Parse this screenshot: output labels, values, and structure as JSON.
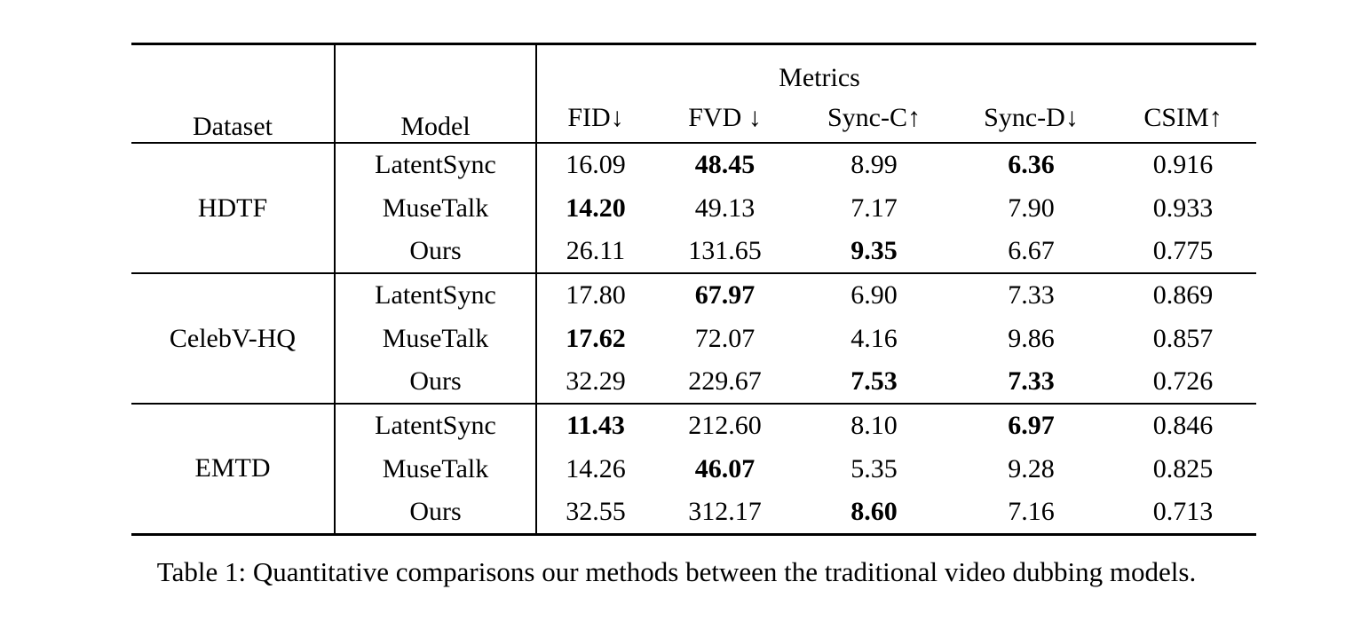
{
  "page": {
    "background_color": "#ffffff",
    "text_color": "#000000"
  },
  "caption": "Table 1: Quantitative comparisons our methods between the traditional video dubbing models.",
  "table": {
    "header": {
      "dataset": "Dataset",
      "model": "Model",
      "metrics_group": "Metrics",
      "metrics": [
        "FID↓",
        "FVD ↓",
        "Sync-C↑",
        "Sync-D↓",
        "CSIM↑"
      ]
    },
    "groups": [
      {
        "dataset": "HDTF",
        "rows": [
          {
            "model": "LatentSync",
            "values": [
              "16.09",
              "48.45",
              "8.99",
              "6.36",
              "0.916"
            ],
            "bold": [
              false,
              true,
              false,
              true,
              false
            ]
          },
          {
            "model": "MuseTalk",
            "values": [
              "14.20",
              "49.13",
              "7.17",
              "7.90",
              "0.933"
            ],
            "bold": [
              true,
              false,
              false,
              false,
              false
            ]
          },
          {
            "model": "Ours",
            "values": [
              "26.11",
              "131.65",
              "9.35",
              "6.67",
              "0.775"
            ],
            "bold": [
              false,
              false,
              true,
              false,
              false
            ]
          }
        ]
      },
      {
        "dataset": "CelebV-HQ",
        "rows": [
          {
            "model": "LatentSync",
            "values": [
              "17.80",
              "67.97",
              "6.90",
              "7.33",
              "0.869"
            ],
            "bold": [
              false,
              true,
              false,
              false,
              false
            ]
          },
          {
            "model": "MuseTalk",
            "values": [
              "17.62",
              "72.07",
              "4.16",
              "9.86",
              "0.857"
            ],
            "bold": [
              true,
              false,
              false,
              false,
              false
            ]
          },
          {
            "model": "Ours",
            "values": [
              "32.29",
              "229.67",
              "7.53",
              "7.33",
              "0.726"
            ],
            "bold": [
              false,
              false,
              true,
              true,
              false
            ]
          }
        ]
      },
      {
        "dataset": "EMTD",
        "rows": [
          {
            "model": "LatentSync",
            "values": [
              "11.43",
              "212.60",
              "8.10",
              "6.97",
              "0.846"
            ],
            "bold": [
              true,
              false,
              false,
              true,
              false
            ]
          },
          {
            "model": "MuseTalk",
            "values": [
              "14.26",
              "46.07",
              "5.35",
              "9.28",
              "0.825"
            ],
            "bold": [
              false,
              true,
              false,
              false,
              false
            ]
          },
          {
            "model": "Ours",
            "values": [
              "32.55",
              "312.17",
              "8.60",
              "7.16",
              "0.713"
            ],
            "bold": [
              false,
              false,
              true,
              false,
              false
            ]
          }
        ]
      }
    ]
  }
}
